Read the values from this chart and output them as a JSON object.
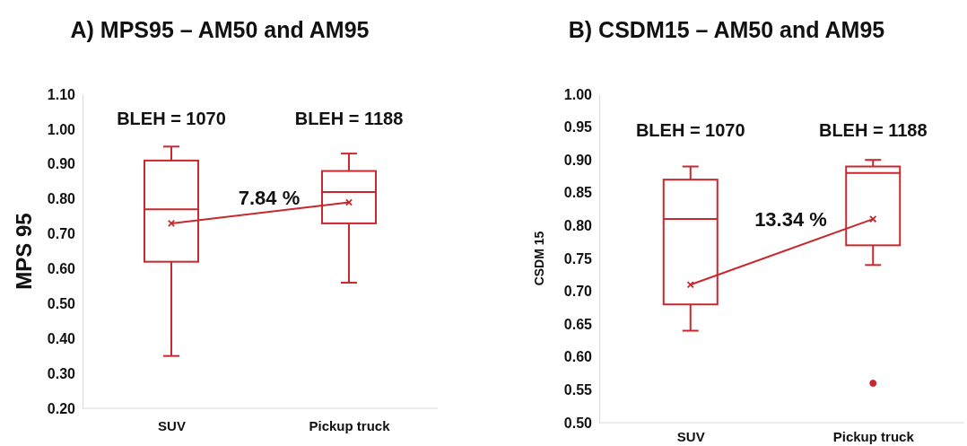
{
  "chart_data": [
    {
      "type": "box",
      "title": "A) MPS95 – AM50 and AM95",
      "ylabel": "MPS 95",
      "categories": [
        "SUV",
        "Pickup truck"
      ],
      "boxes": [
        {
          "low": 0.35,
          "q1": 0.62,
          "median": 0.77,
          "q3": 0.91,
          "high": 0.95
        },
        {
          "low": 0.56,
          "q1": 0.73,
          "median": 0.82,
          "q3": 0.88,
          "high": 0.93
        }
      ],
      "color": "#c8282d",
      "series": [
        {
          "type": "line",
          "color": "#c8282d",
          "values": [
            0.73,
            0.79
          ],
          "marker": "cross"
        }
      ],
      "ylim": [
        0.2,
        1.1
      ],
      "yticks": [
        {
          "value": 0.2,
          "label": "0.20"
        },
        {
          "value": 0.3,
          "label": "0.30"
        },
        {
          "value": 0.4,
          "label": "0.40"
        },
        {
          "value": 0.5,
          "label": "0.50"
        },
        {
          "value": 0.6,
          "label": "0.60"
        },
        {
          "value": 0.7,
          "label": "0.70"
        },
        {
          "value": 0.8,
          "label": "0.80"
        },
        {
          "value": 0.9,
          "label": "0.90"
        },
        {
          "value": 1.0,
          "label": "1.00"
        },
        {
          "value": 1.1,
          "label": "1.10"
        }
      ],
      "annotations": [
        "BLEH = 1070",
        "BLEH = 1188",
        "7.84 %"
      ]
    },
    {
      "type": "box",
      "title": "B) CSDM15 – AM50 and AM95",
      "ylabel": "CSDM 15",
      "categories": [
        "SUV",
        "Pickup truck"
      ],
      "boxes": [
        {
          "low": 0.64,
          "q1": 0.68,
          "median": 0.81,
          "q3": 0.87,
          "high": 0.89
        },
        {
          "low": 0.74,
          "q1": 0.77,
          "median": 0.88,
          "q3": 0.89,
          "high": 0.9,
          "outliers": [
            0.56
          ]
        }
      ],
      "color": "#c8282d",
      "series": [
        {
          "type": "line",
          "color": "#c8282d",
          "values": [
            0.71,
            0.81
          ],
          "marker": "cross"
        }
      ],
      "ylim": [
        0.5,
        1.0
      ],
      "yticks": [
        {
          "value": 0.5,
          "label": "0.50"
        },
        {
          "value": 0.55,
          "label": "0.55"
        },
        {
          "value": 0.6,
          "label": "0.60"
        },
        {
          "value": 0.65,
          "label": "0.65"
        },
        {
          "value": 0.7,
          "label": "0.70"
        },
        {
          "value": 0.75,
          "label": "0.75"
        },
        {
          "value": 0.8,
          "label": "0.80"
        },
        {
          "value": 0.85,
          "label": "0.85"
        },
        {
          "value": 0.9,
          "label": "0.90"
        },
        {
          "value": 0.95,
          "label": "0.95"
        },
        {
          "value": 1.0,
          "label": "1.00"
        }
      ],
      "annotations": [
        "BLEH = 1070",
        "BLEH = 1188",
        "13.34 %"
      ]
    }
  ]
}
